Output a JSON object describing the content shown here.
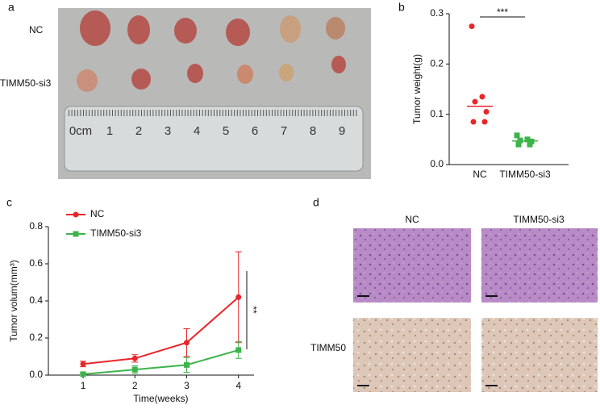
{
  "panels": {
    "a": "a",
    "b": "b",
    "c": "c",
    "d": "d"
  },
  "photo_a": {
    "row_labels": [
      "NC",
      "TIMM50-si3"
    ],
    "ruler_labels": [
      "0cm",
      "1",
      "2",
      "3",
      "4",
      "5",
      "6",
      "7",
      "8",
      "9"
    ]
  },
  "photo_d": {
    "column_labels": [
      "NC",
      "TIMM50-si3"
    ],
    "row_label": "TIMM50"
  },
  "chart_data": [
    {
      "type": "dot",
      "ylabel": "Tumor weight(g)",
      "categories": [
        "NC",
        "TIMM50-si3"
      ],
      "colors": [
        "#e8262a",
        "#3cb44a"
      ],
      "points": [
        [
          0.275,
          0.135,
          0.125,
          0.105,
          0.085,
          0.085
        ],
        [
          0.058,
          0.05,
          0.048,
          0.046,
          0.04,
          0.04
        ]
      ],
      "means": [
        0.116,
        0.047
      ],
      "significance": "***",
      "ylim": [
        0,
        0.3
      ],
      "yticks": [
        {
          "value": 0,
          "label": "0.0"
        },
        0.1,
        0.2,
        0.3
      ]
    },
    {
      "type": "line",
      "ylabel": "Tumor volum(mm³)",
      "xlabel": "Time(weeks)",
      "x": [
        1,
        2,
        3,
        4
      ],
      "xlim": [
        0.33,
        4.3
      ],
      "xticks": [
        1,
        2,
        3,
        4
      ],
      "ylim": [
        0,
        0.8
      ],
      "yticks": [
        {
          "value": 0,
          "label": "0.0"
        },
        0.2,
        0.4,
        0.6,
        0.8
      ],
      "legend": "upper left",
      "significance": "**",
      "series": [
        {
          "name": "NC",
          "color": "#e8262a",
          "values": [
            0.06,
            0.09,
            0.175,
            0.42
          ],
          "errors": [
            0.015,
            0.02,
            0.075,
            0.245
          ]
        },
        {
          "name": "TIMM50-si3",
          "color": "#3cb44a",
          "values": [
            0.005,
            0.03,
            0.055,
            0.135
          ],
          "errors": [
            0.005,
            0.02,
            0.04,
            0.045
          ]
        }
      ]
    }
  ]
}
